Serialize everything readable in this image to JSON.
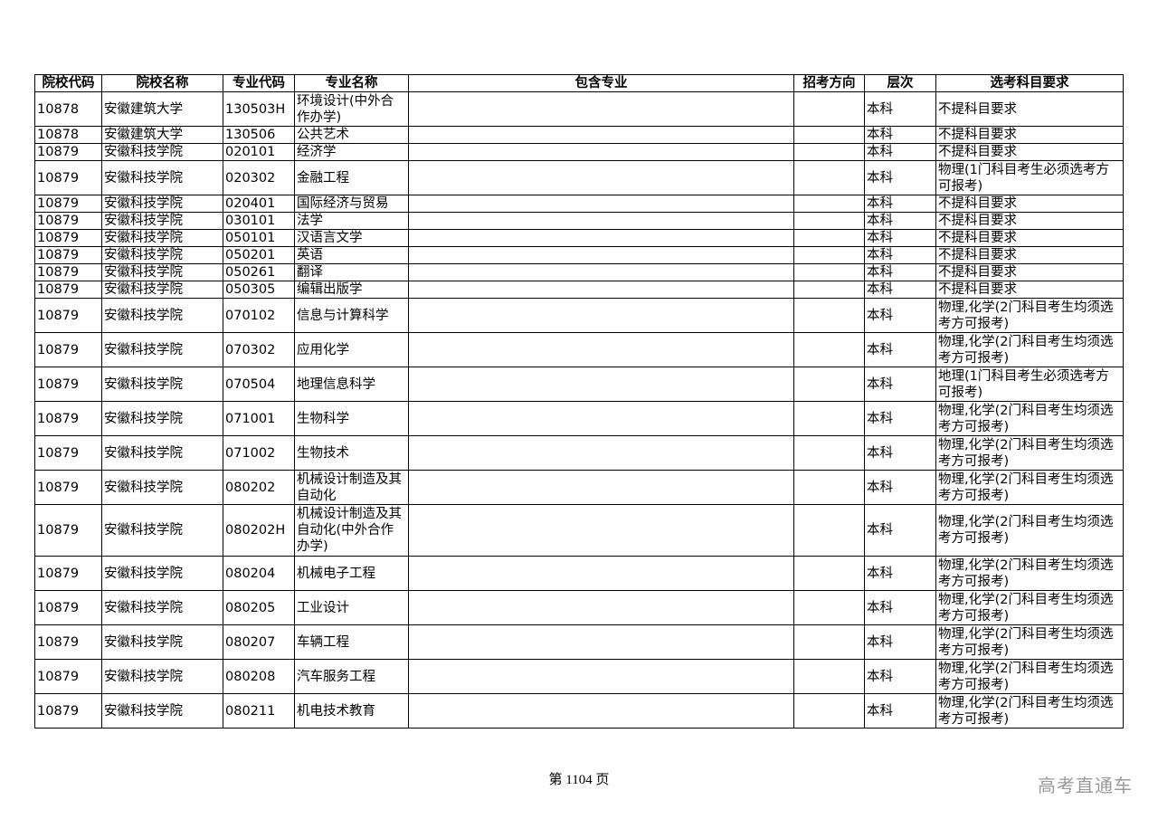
{
  "table": {
    "headers": [
      "院校代码",
      "院校名称",
      "专业代码",
      "专业名称",
      "包含专业",
      "招考方向",
      "层次",
      "选考科目要求"
    ],
    "rows": [
      [
        "10878",
        "安徽建筑大学",
        "130503H",
        "环境设计(中外合作办学)",
        "",
        "",
        "本科",
        "不提科目要求"
      ],
      [
        "10878",
        "安徽建筑大学",
        "130506",
        "公共艺术",
        "",
        "",
        "本科",
        "不提科目要求"
      ],
      [
        "10879",
        "安徽科技学院",
        "020101",
        "经济学",
        "",
        "",
        "本科",
        "不提科目要求"
      ],
      [
        "10879",
        "安徽科技学院",
        "020302",
        "金融工程",
        "",
        "",
        "本科",
        "物理(1门科目考生必须选考方可报考)"
      ],
      [
        "10879",
        "安徽科技学院",
        "020401",
        "国际经济与贸易",
        "",
        "",
        "本科",
        "不提科目要求"
      ],
      [
        "10879",
        "安徽科技学院",
        "030101",
        "法学",
        "",
        "",
        "本科",
        "不提科目要求"
      ],
      [
        "10879",
        "安徽科技学院",
        "050101",
        "汉语言文学",
        "",
        "",
        "本科",
        "不提科目要求"
      ],
      [
        "10879",
        "安徽科技学院",
        "050201",
        "英语",
        "",
        "",
        "本科",
        "不提科目要求"
      ],
      [
        "10879",
        "安徽科技学院",
        "050261",
        "翻译",
        "",
        "",
        "本科",
        "不提科目要求"
      ],
      [
        "10879",
        "安徽科技学院",
        "050305",
        "编辑出版学",
        "",
        "",
        "本科",
        "不提科目要求"
      ],
      [
        "10879",
        "安徽科技学院",
        "070102",
        "信息与计算科学",
        "",
        "",
        "本科",
        "物理,化学(2门科目考生均须选考方可报考)"
      ],
      [
        "10879",
        "安徽科技学院",
        "070302",
        "应用化学",
        "",
        "",
        "本科",
        "物理,化学(2门科目考生均须选考方可报考)"
      ],
      [
        "10879",
        "安徽科技学院",
        "070504",
        "地理信息科学",
        "",
        "",
        "本科",
        "地理(1门科目考生必须选考方可报考)"
      ],
      [
        "10879",
        "安徽科技学院",
        "071001",
        "生物科学",
        "",
        "",
        "本科",
        "物理,化学(2门科目考生均须选考方可报考)"
      ],
      [
        "10879",
        "安徽科技学院",
        "071002",
        "生物技术",
        "",
        "",
        "本科",
        "物理,化学(2门科目考生均须选考方可报考)"
      ],
      [
        "10879",
        "安徽科技学院",
        "080202",
        "机械设计制造及其自动化",
        "",
        "",
        "本科",
        "物理,化学(2门科目考生均须选考方可报考)"
      ],
      [
        "10879",
        "安徽科技学院",
        "080202H",
        "机械设计制造及其自动化(中外合作办学)",
        "",
        "",
        "本科",
        "物理,化学(2门科目考生均须选考方可报考)"
      ],
      [
        "10879",
        "安徽科技学院",
        "080204",
        "机械电子工程",
        "",
        "",
        "本科",
        "物理,化学(2门科目考生均须选考方可报考)"
      ],
      [
        "10879",
        "安徽科技学院",
        "080205",
        "工业设计",
        "",
        "",
        "本科",
        "物理,化学(2门科目考生均须选考方可报考)"
      ],
      [
        "10879",
        "安徽科技学院",
        "080207",
        "车辆工程",
        "",
        "",
        "本科",
        "物理,化学(2门科目考生均须选考方可报考)"
      ],
      [
        "10879",
        "安徽科技学院",
        "080208",
        "汽车服务工程",
        "",
        "",
        "本科",
        "物理,化学(2门科目考生均须选考方可报考)"
      ],
      [
        "10879",
        "安徽科技学院",
        "080211",
        "机电技术教育",
        "",
        "",
        "本科",
        "物理,化学(2门科目考生均须选考方可报考)"
      ]
    ]
  },
  "footer": {
    "page_label": "第 1104 页"
  },
  "watermark": "高考直通车"
}
